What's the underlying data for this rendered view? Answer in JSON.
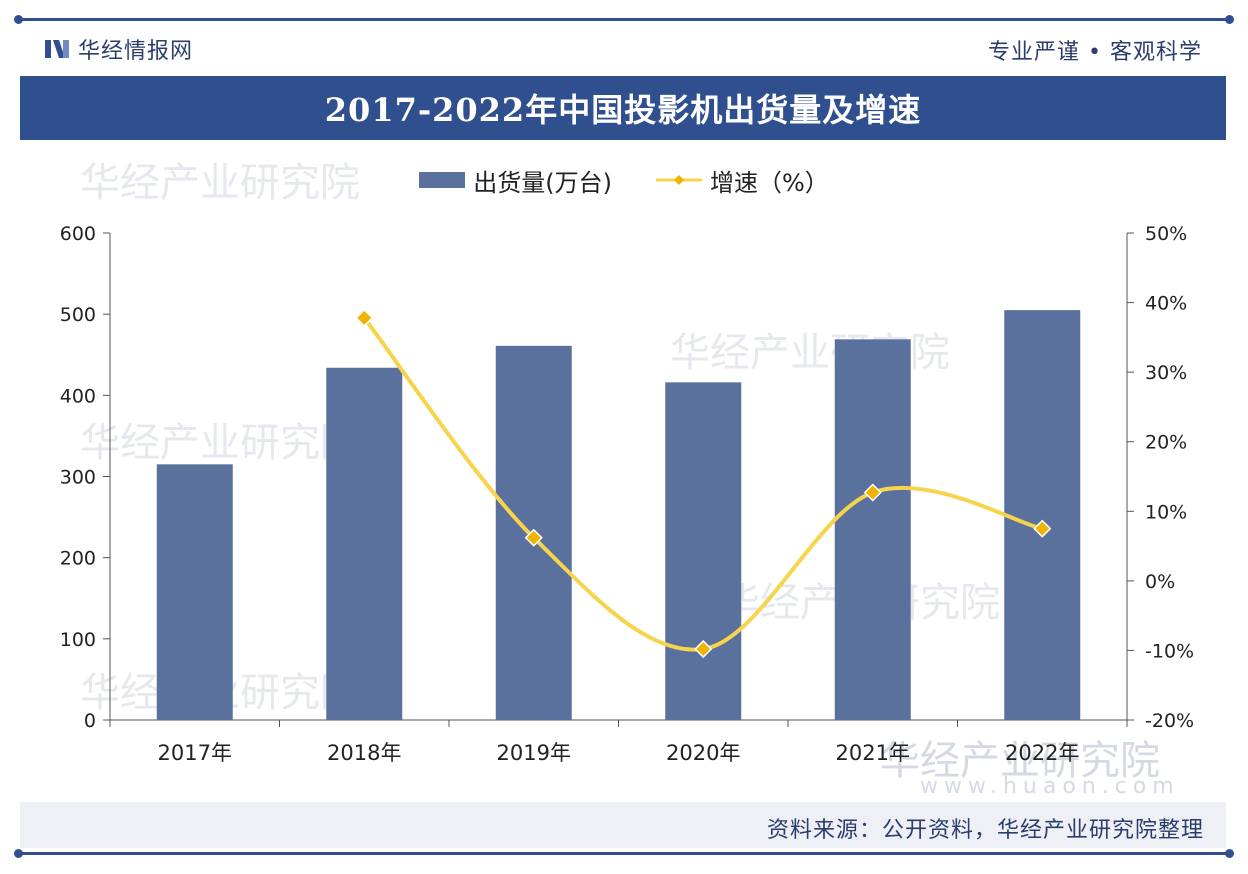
{
  "header": {
    "brand_name": "华经情报网",
    "motto": "专业严谨 • 客观科学"
  },
  "watermarks": {
    "brand": "华经产业研究院",
    "url": "www.huaon.com"
  },
  "footer": {
    "source": "资料来源：公开资料，华经产业研究院整理"
  },
  "colors": {
    "primary": "#2f4f8f",
    "bar": "#5a719e",
    "line": "#f7d44c",
    "marker": "#f0b400"
  },
  "chart_data": {
    "type": "bar",
    "title": "2017-2022年中国投影机出货量及增速",
    "categories": [
      "2017年",
      "2018年",
      "2019年",
      "2020年",
      "2021年",
      "2022年"
    ],
    "series": [
      {
        "name": "出货量(万台)",
        "type": "bar",
        "axis": "left",
        "values": [
          315,
          434,
          461,
          416,
          469,
          505
        ]
      },
      {
        "name": "增速（%）",
        "type": "line",
        "axis": "right",
        "values": [
          null,
          37.8,
          6.2,
          -9.8,
          12.7,
          7.5
        ]
      }
    ],
    "y_left": {
      "min": 0,
      "max": 600,
      "ticks": [
        "0",
        "100",
        "200",
        "300",
        "400",
        "500",
        "600"
      ]
    },
    "y_right": {
      "min": -20,
      "max": 50,
      "ticks": [
        "-20%",
        "-10%",
        "0%",
        "10%",
        "20%",
        "30%",
        "40%",
        "50%"
      ]
    },
    "legend_position": "top-center",
    "grid": false
  }
}
